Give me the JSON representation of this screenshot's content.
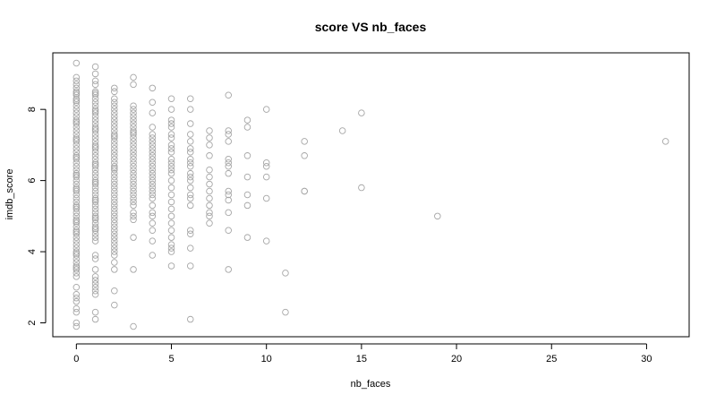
{
  "chart_data": {
    "type": "scatter",
    "title": "score VS nb_faces",
    "xlabel": "nb_faces",
    "ylabel": "imdb_score",
    "xlim": [
      -1.24,
      32.24
    ],
    "ylim": [
      1.61,
      9.59
    ],
    "xticks": [
      0,
      5,
      10,
      15,
      20,
      25,
      30
    ],
    "yticks": [
      2,
      4,
      6,
      8
    ],
    "point_color": "#a6a6a6",
    "marker": "open-circle",
    "grid": false,
    "x": [
      0,
      0,
      0,
      0,
      0,
      0,
      0,
      0,
      0,
      0,
      0,
      0,
      0,
      0,
      0,
      0,
      0,
      0,
      0,
      0,
      0,
      0,
      0,
      0,
      0,
      0,
      0,
      0,
      0,
      0,
      0,
      0,
      0,
      0,
      0,
      0,
      0,
      0,
      0,
      0,
      0,
      0,
      0,
      0,
      0,
      0,
      0,
      0,
      0,
      0,
      0,
      0,
      0,
      0,
      0,
      0,
      0,
      0,
      0,
      0,
      0,
      0,
      0,
      0,
      0,
      0,
      0,
      0,
      0,
      0,
      0,
      0,
      0,
      0,
      0,
      0,
      0,
      0,
      1,
      1,
      1,
      1,
      1,
      1,
      1,
      1,
      1,
      1,
      1,
      1,
      1,
      1,
      1,
      1,
      1,
      1,
      1,
      1,
      1,
      1,
      1,
      1,
      1,
      1,
      1,
      1,
      1,
      1,
      1,
      1,
      1,
      1,
      1,
      1,
      1,
      1,
      1,
      1,
      1,
      1,
      1,
      1,
      1,
      1,
      1,
      1,
      1,
      1,
      1,
      1,
      1,
      1,
      1,
      1,
      1,
      1,
      1,
      1,
      1,
      1,
      1,
      1,
      1,
      1,
      1,
      2,
      2,
      2,
      2,
      2,
      2,
      2,
      2,
      2,
      2,
      2,
      2,
      2,
      2,
      2,
      2,
      2,
      2,
      2,
      2,
      2,
      2,
      2,
      2,
      2,
      2,
      2,
      2,
      2,
      2,
      2,
      2,
      2,
      2,
      2,
      2,
      2,
      2,
      2,
      2,
      2,
      2,
      2,
      2,
      2,
      2,
      2,
      2,
      2,
      2,
      2,
      2,
      2,
      3,
      3,
      3,
      3,
      3,
      3,
      3,
      3,
      3,
      3,
      3,
      3,
      3,
      3,
      3,
      3,
      3,
      3,
      3,
      3,
      3,
      3,
      3,
      3,
      3,
      3,
      3,
      3,
      3,
      3,
      3,
      3,
      3,
      3,
      3,
      3,
      3,
      3,
      4,
      4,
      4,
      4,
      4,
      4,
      4,
      4,
      4,
      4,
      4,
      4,
      4,
      4,
      4,
      4,
      4,
      4,
      4,
      4,
      4,
      4,
      4,
      4,
      4,
      4,
      4,
      4,
      4,
      4,
      5,
      5,
      5,
      5,
      5,
      5,
      5,
      5,
      5,
      5,
      5,
      5,
      5,
      5,
      5,
      5,
      5,
      5,
      5,
      5,
      5,
      5,
      5,
      5,
      5,
      5,
      5,
      5,
      6,
      6,
      6,
      6,
      6,
      6,
      6,
      6,
      6,
      6,
      6,
      6,
      6,
      6,
      6,
      6,
      6,
      6,
      6,
      6,
      6,
      6,
      7,
      7,
      7,
      7,
      7,
      7,
      7,
      7,
      7,
      7,
      7,
      7,
      7,
      8,
      8,
      8,
      8,
      8,
      8,
      8,
      8,
      8,
      8,
      8,
      8,
      8,
      8,
      9,
      9,
      9,
      9,
      9,
      9,
      9,
      10,
      10,
      10,
      10,
      10,
      10,
      11,
      11,
      12,
      12,
      12,
      12,
      14,
      15,
      15,
      19,
      31
    ],
    "y": [
      9.3,
      8.9,
      8.8,
      8.7,
      8.6,
      8.5,
      8.4,
      8.3,
      8.2,
      8.1,
      8.0,
      7.9,
      7.8,
      7.7,
      7.6,
      7.5,
      7.4,
      7.3,
      7.2,
      7.1,
      7.0,
      6.9,
      6.8,
      6.7,
      6.6,
      6.5,
      6.4,
      6.3,
      6.2,
      6.1,
      6.0,
      5.9,
      5.8,
      5.7,
      5.6,
      5.5,
      5.4,
      5.3,
      5.2,
      5.1,
      5.0,
      4.9,
      4.8,
      4.7,
      4.6,
      4.5,
      4.4,
      4.3,
      4.2,
      4.1,
      4.0,
      3.9,
      3.8,
      3.7,
      3.6,
      3.5,
      3.4,
      3.3,
      3.0,
      2.8,
      2.7,
      2.6,
      2.4,
      2.3,
      2.0,
      1.9,
      8.45,
      8.25,
      7.65,
      7.15,
      6.65,
      6.15,
      5.75,
      5.25,
      4.85,
      4.55,
      3.95,
      3.55,
      9.2,
      9.0,
      8.8,
      8.7,
      8.5,
      8.4,
      8.3,
      8.2,
      8.1,
      8.0,
      7.9,
      7.8,
      7.7,
      7.6,
      7.5,
      7.4,
      7.3,
      7.2,
      7.1,
      7.0,
      6.9,
      6.8,
      6.7,
      6.6,
      6.5,
      6.4,
      6.3,
      6.2,
      6.1,
      6.0,
      5.9,
      5.8,
      5.7,
      5.6,
      5.5,
      5.4,
      5.3,
      5.2,
      5.1,
      5.0,
      4.9,
      4.8,
      4.7,
      4.6,
      4.5,
      4.4,
      4.3,
      3.9,
      3.8,
      3.5,
      3.3,
      3.2,
      3.0,
      2.8,
      2.3,
      2.1,
      8.45,
      7.95,
      7.45,
      6.95,
      6.45,
      5.95,
      5.45,
      4.95,
      4.65,
      3.1,
      2.9,
      8.6,
      8.5,
      8.3,
      8.1,
      8.0,
      7.9,
      7.8,
      7.7,
      7.6,
      7.5,
      7.4,
      7.3,
      7.2,
      7.1,
      7.0,
      6.9,
      6.8,
      6.7,
      6.6,
      6.5,
      6.4,
      6.3,
      6.2,
      6.1,
      6.0,
      5.9,
      5.8,
      5.7,
      5.6,
      5.5,
      5.4,
      5.3,
      5.2,
      5.1,
      5.0,
      4.9,
      4.8,
      4.7,
      4.6,
      4.5,
      4.4,
      4.3,
      4.2,
      4.1,
      4.0,
      3.9,
      3.7,
      3.5,
      2.9,
      2.5,
      8.2,
      7.25,
      6.35,
      8.9,
      8.7,
      8.1,
      8.0,
      7.9,
      7.8,
      7.7,
      7.6,
      7.5,
      7.4,
      7.3,
      7.2,
      7.1,
      7.0,
      6.9,
      6.8,
      6.7,
      6.6,
      6.5,
      6.4,
      6.3,
      6.2,
      6.1,
      6.0,
      5.9,
      5.8,
      5.7,
      5.6,
      5.5,
      5.4,
      5.3,
      5.1,
      5.0,
      4.9,
      4.4,
      3.5,
      1.9,
      7.35,
      8.6,
      8.2,
      7.9,
      7.5,
      7.3,
      7.2,
      7.1,
      7.0,
      6.9,
      6.8,
      6.7,
      6.6,
      6.5,
      6.4,
      6.3,
      6.2,
      6.1,
      6.0,
      5.9,
      5.8,
      5.7,
      5.6,
      5.5,
      5.3,
      5.1,
      5.0,
      4.8,
      4.6,
      4.3,
      3.9,
      8.3,
      8.0,
      7.7,
      7.5,
      7.3,
      7.2,
      7.0,
      6.9,
      6.8,
      6.6,
      6.5,
      6.4,
      6.3,
      6.2,
      6.0,
      5.8,
      5.6,
      5.4,
      5.2,
      5.0,
      4.8,
      4.6,
      4.4,
      4.2,
      4.1,
      4.0,
      3.6,
      7.6,
      8.3,
      8.0,
      7.6,
      7.3,
      7.1,
      6.9,
      6.8,
      6.6,
      6.5,
      6.4,
      6.1,
      6.0,
      5.8,
      5.6,
      5.5,
      5.3,
      4.6,
      4.5,
      4.1,
      3.6,
      2.1,
      6.2,
      7.4,
      7.2,
      7.0,
      6.7,
      6.3,
      6.1,
      5.9,
      5.7,
      5.5,
      5.3,
      5.1,
      5.0,
      4.8,
      8.4,
      7.4,
      7.3,
      7.1,
      6.6,
      6.4,
      6.2,
      5.7,
      5.6,
      5.1,
      4.6,
      3.5,
      6.5,
      5.45,
      7.7,
      7.5,
      6.7,
      6.1,
      5.6,
      5.3,
      4.4,
      8.0,
      6.5,
      6.4,
      6.1,
      5.5,
      4.3,
      3.4,
      2.3,
      7.1,
      6.7,
      5.7,
      5.7,
      7.4,
      7.9,
      5.8,
      5.0,
      7.1
    ]
  }
}
